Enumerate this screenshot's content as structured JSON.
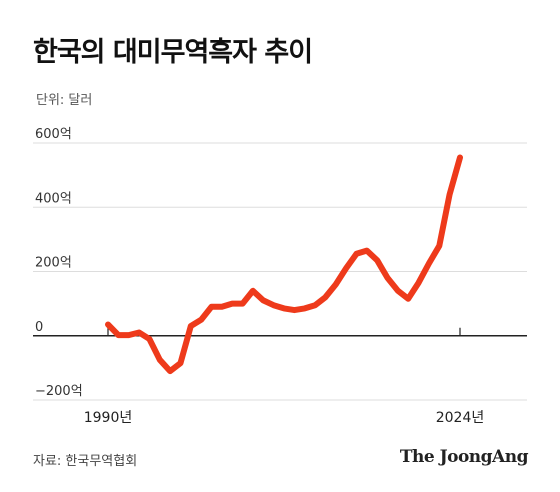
{
  "header": {
    "title": "한국의 대미무역흑자 추이",
    "unit": "단위: 달러"
  },
  "footer": {
    "source": "자료: 한국무역협회",
    "logo": "The JoongAng"
  },
  "colors": {
    "line": "#EE3A1B",
    "grid": "#DDDDDD",
    "axis": "#222222",
    "tick_text": "#333333"
  },
  "chart_data": {
    "type": "line",
    "title": "한국의 대미무역흑자 추이",
    "ylabel": "단위: 달러",
    "ylim": [
      -200,
      600
    ],
    "yticks": [
      {
        "value": 600,
        "label": "600억"
      },
      {
        "value": 400,
        "label": "400억"
      },
      {
        "value": 200,
        "label": "200억"
      },
      {
        "value": 0,
        "label": "0"
      },
      {
        "value": -200,
        "label": "−200억"
      }
    ],
    "xlim": [
      1990,
      2024
    ],
    "xticks": [
      {
        "value": 1990,
        "label": "1990년"
      },
      {
        "value": 2024,
        "label": "2024년"
      }
    ],
    "grid": true,
    "x": [
      1990,
      1991,
      1992,
      1993,
      1994,
      1995,
      1996,
      1997,
      1998,
      1999,
      2000,
      2001,
      2002,
      2003,
      2004,
      2005,
      2006,
      2007,
      2008,
      2009,
      2010,
      2011,
      2012,
      2013,
      2014,
      2015,
      2016,
      2017,
      2018,
      2019,
      2020,
      2021,
      2022,
      2023,
      2024
    ],
    "values": [
      35,
      2,
      2,
      10,
      -10,
      -75,
      -110,
      -85,
      30,
      50,
      90,
      90,
      100,
      100,
      140,
      110,
      95,
      85,
      80,
      85,
      95,
      120,
      160,
      210,
      255,
      265,
      235,
      180,
      140,
      115,
      165,
      225,
      280,
      440,
      555
    ]
  }
}
